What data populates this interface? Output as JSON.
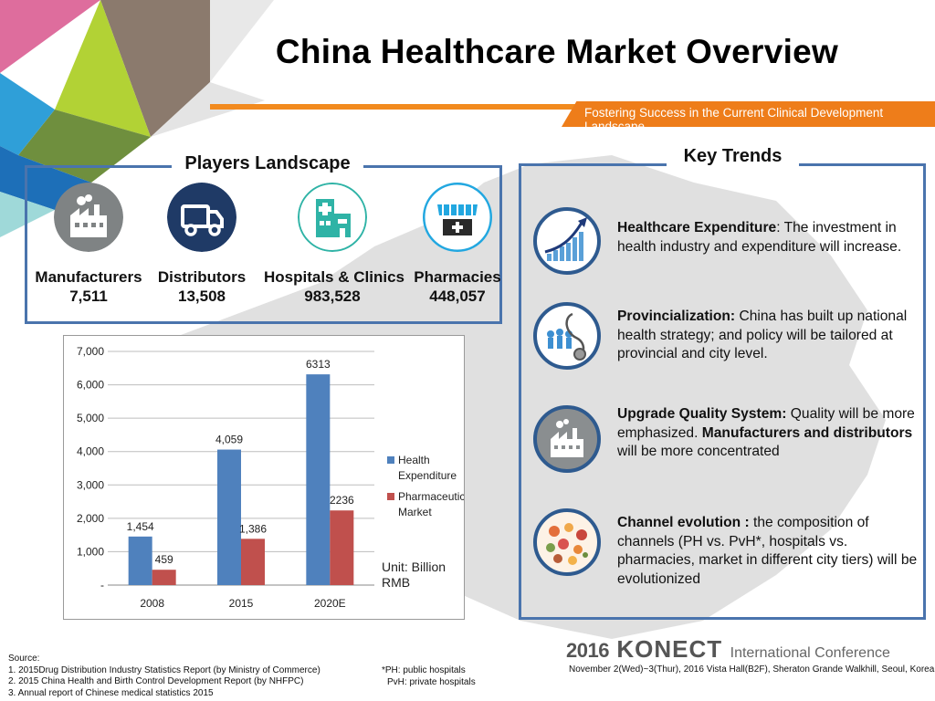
{
  "header": {
    "title": "China Healthcare Market Overview",
    "tagline": "Fostering Success in the Current Clinical Development Landscape"
  },
  "players": {
    "title": "Players Landscape",
    "items": [
      {
        "label": "Manufacturers",
        "value": "7,511",
        "icon": "factory-icon"
      },
      {
        "label": "Distributors",
        "value": "13,508",
        "icon": "truck-icon"
      },
      {
        "label": "Hospitals & Clinics",
        "value": "983,528",
        "icon": "hospital-icon"
      },
      {
        "label": "Pharmacies",
        "value": "448,057",
        "icon": "pharmacy-icon"
      }
    ]
  },
  "chart_data": {
    "type": "bar",
    "categories": [
      "2008",
      "2015",
      "2020E"
    ],
    "series": [
      {
        "name": "Health Expenditure",
        "values": [
          1454,
          4059,
          6313
        ],
        "labels": [
          "1,454",
          "4,059",
          "6313"
        ],
        "color": "#4f81bd"
      },
      {
        "name": "Pharmaceutical Market",
        "values": [
          459,
          1386,
          2236
        ],
        "labels": [
          "459",
          "1,386",
          "2236"
        ],
        "color": "#c0504d"
      }
    ],
    "ylim": [
      0,
      7000
    ],
    "yticks": [
      0,
      1000,
      2000,
      3000,
      4000,
      5000,
      6000,
      7000
    ],
    "ytick_labels": [
      "-",
      "1,000",
      "2,000",
      "3,000",
      "4,000",
      "5,000",
      "6,000",
      "7,000"
    ],
    "grid": true,
    "legend": "right",
    "annotation": "Unit: Billion RMB"
  },
  "trends": {
    "title": "Key Trends",
    "items": [
      {
        "head": "Healthcare Expenditure",
        "sep": ": ",
        "body": "The investment in health industry and expenditure will increase.",
        "icon": "growth-chart-icon"
      },
      {
        "head": "Provincialization:",
        "sep": " ",
        "body": "China has built up national health strategy; and policy will be tailored at provincial and city level.",
        "icon": "stethoscope-icon"
      },
      {
        "head": "Upgrade Quality System:",
        "sep": " ",
        "body": "Quality will be more emphasized. ",
        "head2": "Manufacturers and distributors",
        "body2": " will be more concentrated",
        "icon": "factory-icon"
      },
      {
        "head": "Channel  evolution :",
        "sep": " ",
        "body": "the composition of channels (PH vs. PvH*, hospitals vs. pharmacies, market in different city tiers) will be evolutionized",
        "icon": "marketplace-icon"
      }
    ]
  },
  "footer": {
    "source_title": "Source:",
    "sources": [
      "1. 2015Drug Distribution Industry Statistics Report (by Ministry of Commerce)",
      "2. 2015 China Health and Birth Control Development Report (by NHFPC)",
      "3. Annual report of Chinese medical statistics 2015"
    ],
    "note1": "*PH: public hospitals",
    "note2": "PvH: private hospitals",
    "conf_year": "2016",
    "conf_name": "KONECT",
    "conf_sub": "International Conference",
    "conf_date": "November 2(Wed)~3(Thur), 2016  Vista Hall(B2F), Sheraton Grande Walkhill, Seoul, Korea"
  }
}
